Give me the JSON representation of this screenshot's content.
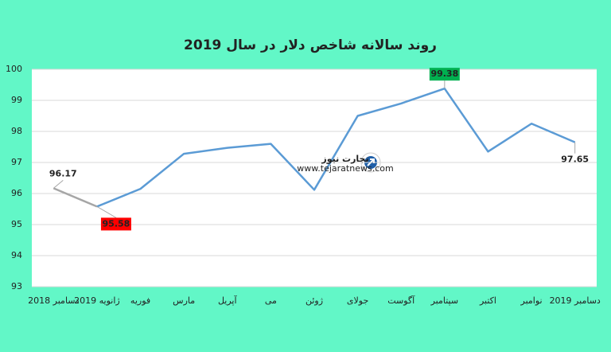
{
  "chart_data": {
    "type": "line",
    "title": "روند سالانه شاخص دلار در سال 2019",
    "categories": [
      "دسامبر 2018",
      "ژانویه 2019",
      "فوریه",
      "مارس",
      "آپریل",
      "می",
      "ژوئن",
      "جولای",
      "آگوست",
      "سپتامبر",
      "اکتبر",
      "نوامبر",
      "دسامبر 2019"
    ],
    "series": [
      {
        "color": "#5b9bd5",
        "values": [
          96.17,
          95.58,
          96.15,
          97.28,
          97.47,
          97.6,
          96.12,
          98.5,
          98.9,
          99.38,
          97.35,
          98.25,
          97.65
        ]
      }
    ],
    "first_segment_color": "#a6a6a6",
    "value_labels": [
      "96.17",
      "95.58",
      null,
      null,
      null,
      null,
      null,
      null,
      null,
      "99.38",
      null,
      null,
      "97.65"
    ],
    "value_label_colors": [
      null,
      "#ff0000",
      null,
      null,
      null,
      null,
      null,
      null,
      null,
      "#00b050",
      null,
      null,
      null
    ],
    "ylim": [
      93,
      100
    ],
    "yticks": [
      93,
      94,
      95,
      96,
      97,
      98,
      99,
      100
    ],
    "grid": true,
    "logo_text": "تجارت نیوز",
    "logo_url": "www.tejaratnews.com"
  }
}
